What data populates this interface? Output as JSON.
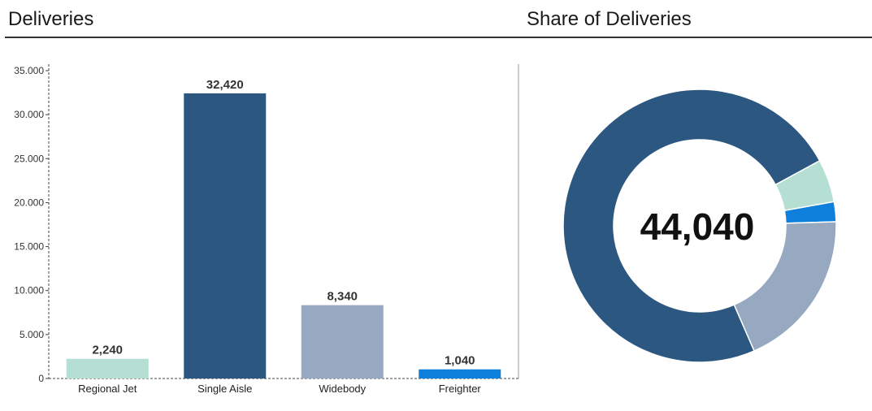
{
  "header": {
    "left_title": "Deliveries",
    "right_title": "Share of Deliveries"
  },
  "colors": {
    "regional_jet": "#b5dfd3",
    "single_aisle": "#2c5780",
    "widebody": "#96a9c1",
    "freighter": "#0f7fdc"
  },
  "chart_data": [
    {
      "type": "bar",
      "title": "Deliveries",
      "categories": [
        "Regional Jet",
        "Single Aisle",
        "Widebody",
        "Freighter"
      ],
      "values": [
        2240,
        32420,
        8340,
        1040
      ],
      "data_labels": [
        "2,240",
        "32,420",
        "8,340",
        "1,040"
      ],
      "colors": [
        "#b5dfd3",
        "#2c5780",
        "#96a9c1",
        "#0f7fdc"
      ],
      "ylim": [
        0,
        35000
      ],
      "ytick_values": [
        0,
        5000,
        10000,
        15000,
        20000,
        25000,
        30000,
        35000
      ],
      "ytick_labels": [
        "0",
        "5.000",
        "10.000",
        "15.000",
        "20.000",
        "25.000",
        "30.000",
        "35.000"
      ],
      "xlabel": "",
      "ylabel": "",
      "grid": false
    },
    {
      "type": "pie",
      "title": "Share of Deliveries",
      "donut": true,
      "center_label": "44,040",
      "categories": [
        "Regional Jet",
        "Freighter",
        "Widebody",
        "Single Aisle"
      ],
      "values": [
        2240,
        1040,
        8340,
        32420
      ],
      "colors": [
        "#b5dfd3",
        "#0f7fdc",
        "#96a9c1",
        "#2c5780"
      ]
    }
  ]
}
